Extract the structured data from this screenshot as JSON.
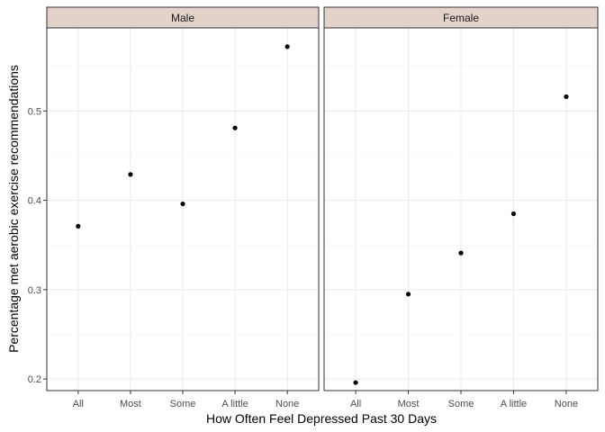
{
  "chart_data": {
    "type": "scatter",
    "xlabel": "How Often Feel Depressed Past 30 Days",
    "ylabel": "Percentage met aerobic exercise recommendations",
    "categories": [
      "All",
      "Most",
      "Some",
      "A little",
      "None"
    ],
    "ylim": [
      0.187,
      0.593
    ],
    "yticks": [
      0.2,
      0.3,
      0.4,
      0.5
    ],
    "ytick_labels": [
      "0.2",
      "0.3",
      "0.4",
      "0.5"
    ],
    "grid": true,
    "strip_fill": "#e2d2ca",
    "point_color": "#000000",
    "facets": [
      {
        "label": "Male",
        "values": [
          0.371,
          0.429,
          0.396,
          0.481,
          0.572
        ]
      },
      {
        "label": "Female",
        "values": [
          0.196,
          0.295,
          0.341,
          0.385,
          0.516
        ]
      }
    ]
  }
}
